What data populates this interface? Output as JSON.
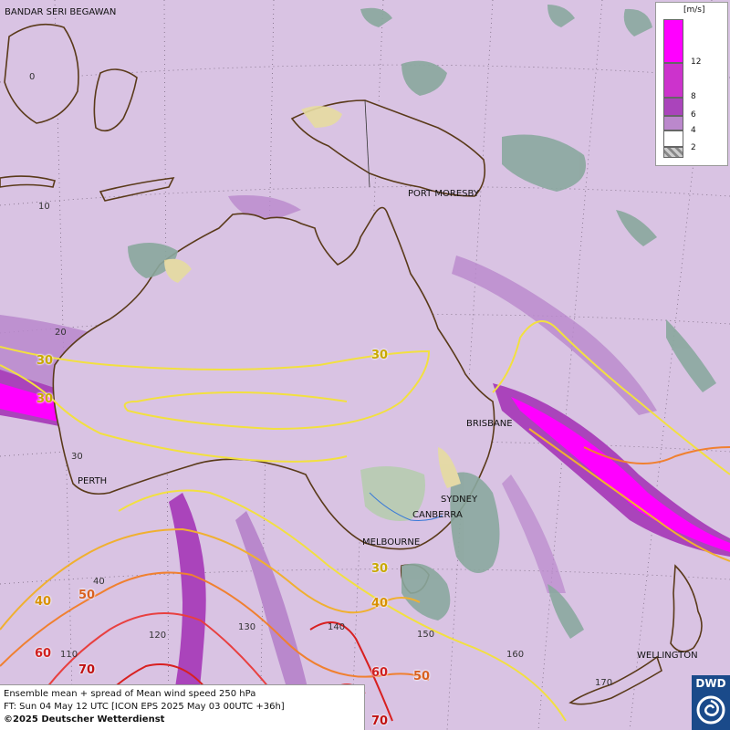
{
  "header": {
    "line1": "Ensemble mean + spread of Mean wind speed 250 hPa",
    "line2": "FT: Sun 04 May 12 UTC [ICON EPS 2025 May 03 00UTC +36h]",
    "copyright": "©2025 Deutscher Wetterdienst"
  },
  "logo": {
    "text": "DWD"
  },
  "legend": {
    "unit": "[m/s]",
    "ticks": [
      "12",
      "8",
      "6",
      "4",
      "2"
    ],
    "colors": [
      "#ff00ff",
      "#cc33cc",
      "#aa44bb",
      "#bb88cc",
      "#ffffff",
      "#cccccc"
    ]
  },
  "cities": {
    "bandar": "BANDAR SERI BEGAWAN",
    "port_moresby": "PORT MORESBY",
    "brisbane": "BRISBANE",
    "perth": "PERTH",
    "sydney": "SYDNEY",
    "canberra": "CANBERRA",
    "melbourne": "MELBOURNE",
    "wellington": "WELLINGTON"
  },
  "grid_labels": {
    "lat0": "0",
    "lat10": "10",
    "lat20": "20",
    "lat30": "30",
    "lat40": "40",
    "lon110": "110",
    "lon120": "120",
    "lon130": "130",
    "lon140": "140",
    "lon150": "150",
    "lon160": "160",
    "lon170": "170"
  },
  "contour_labels": {
    "c30_a": "30",
    "c30_b": "30",
    "c30_c": "30",
    "c30_d": "30",
    "c40_a": "40",
    "c40_b": "40",
    "c50_a": "50",
    "c50_b": "50",
    "c60_a": "60",
    "c60_b": "60",
    "c70_a": "70",
    "c70_b": "70"
  },
  "colors": {
    "background": "#d9c3e3",
    "land_gray": "#8aa89e",
    "coast": "#5a3a1a",
    "c30": "#f2e040",
    "c40": "#f0b030",
    "c50": "#f08030",
    "c60": "#e84040",
    "c70": "#d82020"
  }
}
